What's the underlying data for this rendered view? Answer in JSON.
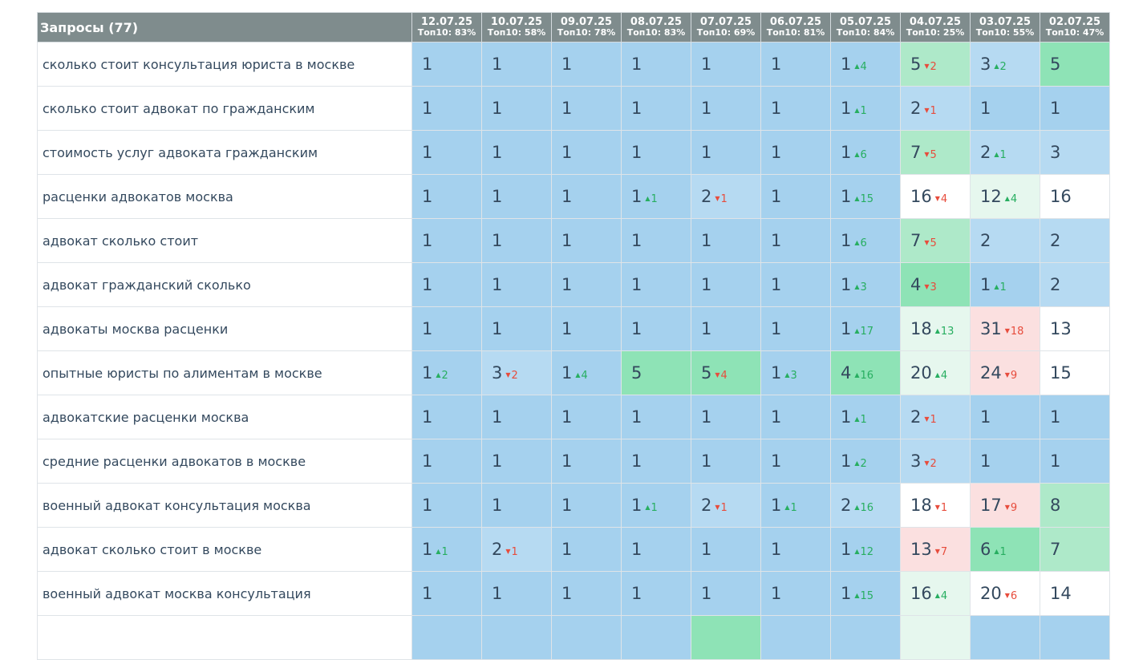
{
  "header": {
    "query_title": "Запросы (77)",
    "dates": [
      {
        "date": "12.07.25",
        "top10": "Топ10: 83%"
      },
      {
        "date": "10.07.25",
        "top10": "Топ10: 58%"
      },
      {
        "date": "09.07.25",
        "top10": "Топ10: 78%"
      },
      {
        "date": "08.07.25",
        "top10": "Топ10: 83%"
      },
      {
        "date": "07.07.25",
        "top10": "Топ10: 69%"
      },
      {
        "date": "06.07.25",
        "top10": "Топ10: 81%"
      },
      {
        "date": "05.07.25",
        "top10": "Топ10: 84%"
      },
      {
        "date": "04.07.25",
        "top10": "Топ10: 25%"
      },
      {
        "date": "03.07.25",
        "top10": "Топ10: 55%"
      },
      {
        "date": "02.07.25",
        "top10": "Топ10: 47%"
      }
    ]
  },
  "delta_icons": {
    "up": "▲",
    "down": "▼"
  },
  "colors": {
    "header_bg": "#7f8c8d",
    "top1": "#a5d1ee",
    "top3": "#b6daf2",
    "green": "#8ee3b6",
    "light_green": "#aee9c9",
    "pale_green": "#e6f7ee",
    "pink": "#fbe0e0",
    "white": "#ffffff",
    "up": "#27ae60",
    "down": "#e74c3c"
  },
  "rows": [
    {
      "query": "сколько стоит консультация юриста в москве",
      "cells": [
        {
          "pos": "1",
          "delta": "",
          "dir": "",
          "color": "top1"
        },
        {
          "pos": "1",
          "delta": "",
          "dir": "",
          "color": "top1"
        },
        {
          "pos": "1",
          "delta": "",
          "dir": "",
          "color": "top1"
        },
        {
          "pos": "1",
          "delta": "",
          "dir": "",
          "color": "top1"
        },
        {
          "pos": "1",
          "delta": "",
          "dir": "",
          "color": "top1"
        },
        {
          "pos": "1",
          "delta": "",
          "dir": "",
          "color": "top1"
        },
        {
          "pos": "1",
          "delta": "4",
          "dir": "up",
          "color": "top1"
        },
        {
          "pos": "5",
          "delta": "2",
          "dir": "down",
          "color": "lgreen"
        },
        {
          "pos": "3",
          "delta": "2",
          "dir": "up",
          "color": "top3"
        },
        {
          "pos": "5",
          "delta": "",
          "dir": "",
          "color": "green"
        }
      ]
    },
    {
      "query": "сколько стоит адвокат по гражданским",
      "cells": [
        {
          "pos": "1",
          "delta": "",
          "dir": "",
          "color": "top1"
        },
        {
          "pos": "1",
          "delta": "",
          "dir": "",
          "color": "top1"
        },
        {
          "pos": "1",
          "delta": "",
          "dir": "",
          "color": "top1"
        },
        {
          "pos": "1",
          "delta": "",
          "dir": "",
          "color": "top1"
        },
        {
          "pos": "1",
          "delta": "",
          "dir": "",
          "color": "top1"
        },
        {
          "pos": "1",
          "delta": "",
          "dir": "",
          "color": "top1"
        },
        {
          "pos": "1",
          "delta": "1",
          "dir": "up",
          "color": "top1"
        },
        {
          "pos": "2",
          "delta": "1",
          "dir": "down",
          "color": "top3"
        },
        {
          "pos": "1",
          "delta": "",
          "dir": "",
          "color": "top1"
        },
        {
          "pos": "1",
          "delta": "",
          "dir": "",
          "color": "top1"
        }
      ]
    },
    {
      "query": "стоимость услуг адвоката гражданским",
      "cells": [
        {
          "pos": "1",
          "delta": "",
          "dir": "",
          "color": "top1"
        },
        {
          "pos": "1",
          "delta": "",
          "dir": "",
          "color": "top1"
        },
        {
          "pos": "1",
          "delta": "",
          "dir": "",
          "color": "top1"
        },
        {
          "pos": "1",
          "delta": "",
          "dir": "",
          "color": "top1"
        },
        {
          "pos": "1",
          "delta": "",
          "dir": "",
          "color": "top1"
        },
        {
          "pos": "1",
          "delta": "",
          "dir": "",
          "color": "top1"
        },
        {
          "pos": "1",
          "delta": "6",
          "dir": "up",
          "color": "top1"
        },
        {
          "pos": "7",
          "delta": "5",
          "dir": "down",
          "color": "lgreen"
        },
        {
          "pos": "2",
          "delta": "1",
          "dir": "up",
          "color": "top3"
        },
        {
          "pos": "3",
          "delta": "",
          "dir": "",
          "color": "top3"
        }
      ]
    },
    {
      "query": "расценки адвокатов москва",
      "cells": [
        {
          "pos": "1",
          "delta": "",
          "dir": "",
          "color": "top1"
        },
        {
          "pos": "1",
          "delta": "",
          "dir": "",
          "color": "top1"
        },
        {
          "pos": "1",
          "delta": "",
          "dir": "",
          "color": "top1"
        },
        {
          "pos": "1",
          "delta": "1",
          "dir": "up",
          "color": "top1"
        },
        {
          "pos": "2",
          "delta": "1",
          "dir": "down",
          "color": "top3"
        },
        {
          "pos": "1",
          "delta": "",
          "dir": "",
          "color": "top1"
        },
        {
          "pos": "1",
          "delta": "15",
          "dir": "up",
          "color": "top1"
        },
        {
          "pos": "16",
          "delta": "4",
          "dir": "down",
          "color": "white"
        },
        {
          "pos": "12",
          "delta": "4",
          "dir": "up",
          "color": "pgreen"
        },
        {
          "pos": "16",
          "delta": "",
          "dir": "",
          "color": "white"
        }
      ]
    },
    {
      "query": "адвокат сколько стоит",
      "cells": [
        {
          "pos": "1",
          "delta": "",
          "dir": "",
          "color": "top1"
        },
        {
          "pos": "1",
          "delta": "",
          "dir": "",
          "color": "top1"
        },
        {
          "pos": "1",
          "delta": "",
          "dir": "",
          "color": "top1"
        },
        {
          "pos": "1",
          "delta": "",
          "dir": "",
          "color": "top1"
        },
        {
          "pos": "1",
          "delta": "",
          "dir": "",
          "color": "top1"
        },
        {
          "pos": "1",
          "delta": "",
          "dir": "",
          "color": "top1"
        },
        {
          "pos": "1",
          "delta": "6",
          "dir": "up",
          "color": "top1"
        },
        {
          "pos": "7",
          "delta": "5",
          "dir": "down",
          "color": "lgreen"
        },
        {
          "pos": "2",
          "delta": "",
          "dir": "",
          "color": "top3"
        },
        {
          "pos": "2",
          "delta": "",
          "dir": "",
          "color": "top3"
        }
      ]
    },
    {
      "query": "адвокат гражданский сколько",
      "cells": [
        {
          "pos": "1",
          "delta": "",
          "dir": "",
          "color": "top1"
        },
        {
          "pos": "1",
          "delta": "",
          "dir": "",
          "color": "top1"
        },
        {
          "pos": "1",
          "delta": "",
          "dir": "",
          "color": "top1"
        },
        {
          "pos": "1",
          "delta": "",
          "dir": "",
          "color": "top1"
        },
        {
          "pos": "1",
          "delta": "",
          "dir": "",
          "color": "top1"
        },
        {
          "pos": "1",
          "delta": "",
          "dir": "",
          "color": "top1"
        },
        {
          "pos": "1",
          "delta": "3",
          "dir": "up",
          "color": "top1"
        },
        {
          "pos": "4",
          "delta": "3",
          "dir": "down",
          "color": "green"
        },
        {
          "pos": "1",
          "delta": "1",
          "dir": "up",
          "color": "top1"
        },
        {
          "pos": "2",
          "delta": "",
          "dir": "",
          "color": "top3"
        }
      ]
    },
    {
      "query": "адвокаты москва расценки",
      "cells": [
        {
          "pos": "1",
          "delta": "",
          "dir": "",
          "color": "top1"
        },
        {
          "pos": "1",
          "delta": "",
          "dir": "",
          "color": "top1"
        },
        {
          "pos": "1",
          "delta": "",
          "dir": "",
          "color": "top1"
        },
        {
          "pos": "1",
          "delta": "",
          "dir": "",
          "color": "top1"
        },
        {
          "pos": "1",
          "delta": "",
          "dir": "",
          "color": "top1"
        },
        {
          "pos": "1",
          "delta": "",
          "dir": "",
          "color": "top1"
        },
        {
          "pos": "1",
          "delta": "17",
          "dir": "up",
          "color": "top1"
        },
        {
          "pos": "18",
          "delta": "13",
          "dir": "up",
          "color": "pgreen"
        },
        {
          "pos": "31",
          "delta": "18",
          "dir": "down",
          "color": "pink"
        },
        {
          "pos": "13",
          "delta": "",
          "dir": "",
          "color": "white"
        }
      ]
    },
    {
      "query": "опытные юристы по алиментам в москве",
      "cells": [
        {
          "pos": "1",
          "delta": "2",
          "dir": "up",
          "color": "top1"
        },
        {
          "pos": "3",
          "delta": "2",
          "dir": "down",
          "color": "top3"
        },
        {
          "pos": "1",
          "delta": "4",
          "dir": "up",
          "color": "top1"
        },
        {
          "pos": "5",
          "delta": "",
          "dir": "",
          "color": "green"
        },
        {
          "pos": "5",
          "delta": "4",
          "dir": "down",
          "color": "green"
        },
        {
          "pos": "1",
          "delta": "3",
          "dir": "up",
          "color": "top1"
        },
        {
          "pos": "4",
          "delta": "16",
          "dir": "up",
          "color": "green"
        },
        {
          "pos": "20",
          "delta": "4",
          "dir": "up",
          "color": "pgreen"
        },
        {
          "pos": "24",
          "delta": "9",
          "dir": "down",
          "color": "pink"
        },
        {
          "pos": "15",
          "delta": "",
          "dir": "",
          "color": "white"
        }
      ]
    },
    {
      "query": "адвокатские расценки москва",
      "cells": [
        {
          "pos": "1",
          "delta": "",
          "dir": "",
          "color": "top1"
        },
        {
          "pos": "1",
          "delta": "",
          "dir": "",
          "color": "top1"
        },
        {
          "pos": "1",
          "delta": "",
          "dir": "",
          "color": "top1"
        },
        {
          "pos": "1",
          "delta": "",
          "dir": "",
          "color": "top1"
        },
        {
          "pos": "1",
          "delta": "",
          "dir": "",
          "color": "top1"
        },
        {
          "pos": "1",
          "delta": "",
          "dir": "",
          "color": "top1"
        },
        {
          "pos": "1",
          "delta": "1",
          "dir": "up",
          "color": "top1"
        },
        {
          "pos": "2",
          "delta": "1",
          "dir": "down",
          "color": "top3"
        },
        {
          "pos": "1",
          "delta": "",
          "dir": "",
          "color": "top1"
        },
        {
          "pos": "1",
          "delta": "",
          "dir": "",
          "color": "top1"
        }
      ]
    },
    {
      "query": "средние расценки адвокатов в москве",
      "cells": [
        {
          "pos": "1",
          "delta": "",
          "dir": "",
          "color": "top1"
        },
        {
          "pos": "1",
          "delta": "",
          "dir": "",
          "color": "top1"
        },
        {
          "pos": "1",
          "delta": "",
          "dir": "",
          "color": "top1"
        },
        {
          "pos": "1",
          "delta": "",
          "dir": "",
          "color": "top1"
        },
        {
          "pos": "1",
          "delta": "",
          "dir": "",
          "color": "top1"
        },
        {
          "pos": "1",
          "delta": "",
          "dir": "",
          "color": "top1"
        },
        {
          "pos": "1",
          "delta": "2",
          "dir": "up",
          "color": "top1"
        },
        {
          "pos": "3",
          "delta": "2",
          "dir": "down",
          "color": "top3"
        },
        {
          "pos": "1",
          "delta": "",
          "dir": "",
          "color": "top1"
        },
        {
          "pos": "1",
          "delta": "",
          "dir": "",
          "color": "top1"
        }
      ]
    },
    {
      "query": "военный адвокат консультация москва",
      "cells": [
        {
          "pos": "1",
          "delta": "",
          "dir": "",
          "color": "top1"
        },
        {
          "pos": "1",
          "delta": "",
          "dir": "",
          "color": "top1"
        },
        {
          "pos": "1",
          "delta": "",
          "dir": "",
          "color": "top1"
        },
        {
          "pos": "1",
          "delta": "1",
          "dir": "up",
          "color": "top1"
        },
        {
          "pos": "2",
          "delta": "1",
          "dir": "down",
          "color": "top3"
        },
        {
          "pos": "1",
          "delta": "1",
          "dir": "up",
          "color": "top1"
        },
        {
          "pos": "2",
          "delta": "16",
          "dir": "up",
          "color": "top3"
        },
        {
          "pos": "18",
          "delta": "1",
          "dir": "down",
          "color": "white"
        },
        {
          "pos": "17",
          "delta": "9",
          "dir": "down",
          "color": "pink"
        },
        {
          "pos": "8",
          "delta": "",
          "dir": "",
          "color": "lgreen"
        }
      ]
    },
    {
      "query": "адвокат сколько стоит в москве",
      "cells": [
        {
          "pos": "1",
          "delta": "1",
          "dir": "up",
          "color": "top1"
        },
        {
          "pos": "2",
          "delta": "1",
          "dir": "down",
          "color": "top3"
        },
        {
          "pos": "1",
          "delta": "",
          "dir": "",
          "color": "top1"
        },
        {
          "pos": "1",
          "delta": "",
          "dir": "",
          "color": "top1"
        },
        {
          "pos": "1",
          "delta": "",
          "dir": "",
          "color": "top1"
        },
        {
          "pos": "1",
          "delta": "",
          "dir": "",
          "color": "top1"
        },
        {
          "pos": "1",
          "delta": "12",
          "dir": "up",
          "color": "top1"
        },
        {
          "pos": "13",
          "delta": "7",
          "dir": "down",
          "color": "pink"
        },
        {
          "pos": "6",
          "delta": "1",
          "dir": "up",
          "color": "green"
        },
        {
          "pos": "7",
          "delta": "",
          "dir": "",
          "color": "lgreen"
        }
      ]
    },
    {
      "query": "военный адвокат москва консультация",
      "cells": [
        {
          "pos": "1",
          "delta": "",
          "dir": "",
          "color": "top1"
        },
        {
          "pos": "1",
          "delta": "",
          "dir": "",
          "color": "top1"
        },
        {
          "pos": "1",
          "delta": "",
          "dir": "",
          "color": "top1"
        },
        {
          "pos": "1",
          "delta": "",
          "dir": "",
          "color": "top1"
        },
        {
          "pos": "1",
          "delta": "",
          "dir": "",
          "color": "top1"
        },
        {
          "pos": "1",
          "delta": "",
          "dir": "",
          "color": "top1"
        },
        {
          "pos": "1",
          "delta": "15",
          "dir": "up",
          "color": "top1"
        },
        {
          "pos": "16",
          "delta": "4",
          "dir": "up",
          "color": "pgreen"
        },
        {
          "pos": "20",
          "delta": "6",
          "dir": "down",
          "color": "white"
        },
        {
          "pos": "14",
          "delta": "",
          "dir": "",
          "color": "white"
        }
      ]
    },
    {
      "query": "",
      "cells": [
        {
          "pos": "",
          "delta": "",
          "dir": "",
          "color": "top1"
        },
        {
          "pos": "",
          "delta": "",
          "dir": "",
          "color": "top1"
        },
        {
          "pos": "",
          "delta": "",
          "dir": "",
          "color": "top1"
        },
        {
          "pos": "",
          "delta": "",
          "dir": "",
          "color": "top1"
        },
        {
          "pos": "",
          "delta": "",
          "dir": "",
          "color": "green"
        },
        {
          "pos": "",
          "delta": "",
          "dir": "",
          "color": "top1"
        },
        {
          "pos": "",
          "delta": "",
          "dir": "",
          "color": "top1"
        },
        {
          "pos": "",
          "delta": "",
          "dir": "",
          "color": "pgreen"
        },
        {
          "pos": "",
          "delta": "",
          "dir": "",
          "color": "top1"
        },
        {
          "pos": "",
          "delta": "",
          "dir": "",
          "color": "top1"
        }
      ]
    }
  ]
}
